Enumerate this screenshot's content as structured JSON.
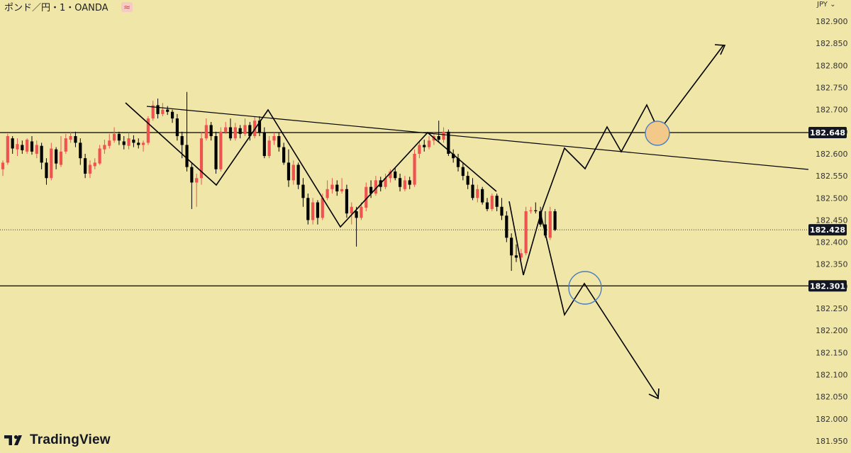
{
  "header": {
    "symbol_title": "ポンド／円・1・OANDA",
    "wave_icon": "≈",
    "currency": "JPY"
  },
  "brand": {
    "name": "TradingView"
  },
  "colors": {
    "background": "#f0e6a8",
    "up_candle": "#ef5350",
    "down_candle": "#000000",
    "drawing": "#000000",
    "circle_stroke": "#4a7fc1",
    "circle_fill": "#f3c98a"
  },
  "chart_data": {
    "type": "candlestick",
    "title": "",
    "xlabel": "",
    "ylabel": "",
    "ylim": [
      181.95,
      182.925
    ],
    "grid": false,
    "y_ticks": [
      "182.900",
      "182.850",
      "182.800",
      "182.750",
      "182.700",
      "182.650",
      "182.600",
      "182.550",
      "182.500",
      "182.450",
      "182.400",
      "182.350",
      "182.300",
      "182.250",
      "182.200",
      "182.150",
      "182.100",
      "182.050",
      "182.000",
      "181.950"
    ],
    "price_labels": [
      {
        "value": 182.648,
        "label": "182.648",
        "line": "solid"
      },
      {
        "value": 182.428,
        "label": "182.428",
        "line": "dotted"
      },
      {
        "value": 182.301,
        "label": "182.301",
        "line": "solid"
      }
    ],
    "candles": [
      [
        182.565,
        182.58,
        182.585,
        182.55
      ],
      [
        182.58,
        182.64,
        182.645,
        182.575
      ],
      [
        182.635,
        182.612,
        182.64,
        182.6
      ],
      [
        182.61,
        182.622,
        182.635,
        182.595
      ],
      [
        182.62,
        182.608,
        182.63,
        182.6
      ],
      [
        182.605,
        182.632,
        182.635,
        182.6
      ],
      [
        182.628,
        182.605,
        182.64,
        182.598
      ],
      [
        182.6,
        182.62,
        182.63,
        182.59
      ],
      [
        182.618,
        182.58,
        182.625,
        182.565
      ],
      [
        182.58,
        182.545,
        182.59,
        182.53
      ],
      [
        182.545,
        182.612,
        182.625,
        182.54
      ],
      [
        182.61,
        182.578,
        182.615,
        182.565
      ],
      [
        182.575,
        182.605,
        182.64,
        182.57
      ],
      [
        182.605,
        182.635,
        182.645,
        182.6
      ],
      [
        182.632,
        182.64,
        182.65,
        182.625
      ],
      [
        182.64,
        182.625,
        182.65,
        182.615
      ],
      [
        182.625,
        182.59,
        182.635,
        182.575
      ],
      [
        182.59,
        182.555,
        182.6,
        182.545
      ],
      [
        182.555,
        182.575,
        182.585,
        182.545
      ],
      [
        182.572,
        182.58,
        182.59,
        182.565
      ],
      [
        182.578,
        182.612,
        182.62,
        182.575
      ],
      [
        182.61,
        182.62,
        182.632,
        182.6
      ],
      [
        182.618,
        182.63,
        182.645,
        182.612
      ],
      [
        182.63,
        182.645,
        182.66,
        182.625
      ],
      [
        182.645,
        182.63,
        182.65,
        182.62
      ],
      [
        182.628,
        182.62,
        182.64,
        182.61
      ],
      [
        182.618,
        182.635,
        182.648,
        182.61
      ],
      [
        182.632,
        182.625,
        182.642,
        182.615
      ],
      [
        182.625,
        182.62,
        182.635,
        182.612
      ],
      [
        182.62,
        182.625,
        182.63,
        182.605
      ],
      [
        182.625,
        182.68,
        182.685,
        182.62
      ],
      [
        182.68,
        182.71,
        182.72,
        182.675
      ],
      [
        182.71,
        182.69,
        182.725,
        182.68
      ],
      [
        182.69,
        182.7,
        182.715,
        182.685
      ],
      [
        182.7,
        182.695,
        182.708,
        182.688
      ],
      [
        182.695,
        182.68,
        182.7,
        182.67
      ],
      [
        182.68,
        182.64,
        182.69,
        182.63
      ],
      [
        182.64,
        182.62,
        182.65,
        182.59
      ],
      [
        182.62,
        182.57,
        182.74,
        182.56
      ],
      [
        182.57,
        182.535,
        182.58,
        182.475
      ],
      [
        182.535,
        182.545,
        182.555,
        182.48
      ],
      [
        182.545,
        182.635,
        182.65,
        182.53
      ],
      [
        182.635,
        182.665,
        182.68,
        182.63
      ],
      [
        182.665,
        182.64,
        182.672,
        182.63
      ],
      [
        182.64,
        182.565,
        182.65,
        182.555
      ],
      [
        182.565,
        182.65,
        182.66,
        182.56
      ],
      [
        182.65,
        182.66,
        182.672,
        182.645
      ],
      [
        182.66,
        182.635,
        182.68,
        182.63
      ],
      [
        182.635,
        182.66,
        182.67,
        182.63
      ],
      [
        182.658,
        182.645,
        182.665,
        182.635
      ],
      [
        182.645,
        182.665,
        182.68,
        182.64
      ],
      [
        182.665,
        182.64,
        182.672,
        182.63
      ],
      [
        182.64,
        182.675,
        182.685,
        182.635
      ],
      [
        182.675,
        182.648,
        182.685,
        182.64
      ],
      [
        182.648,
        182.595,
        182.66,
        182.59
      ],
      [
        182.595,
        182.63,
        182.64,
        182.59
      ],
      [
        182.63,
        182.64,
        182.648,
        182.62
      ],
      [
        182.64,
        182.615,
        182.648,
        182.605
      ],
      [
        182.615,
        182.58,
        182.625,
        182.575
      ],
      [
        182.58,
        182.54,
        182.61,
        182.525
      ],
      [
        182.54,
        182.575,
        182.585,
        182.53
      ],
      [
        182.575,
        182.53,
        182.58,
        182.52
      ],
      [
        182.53,
        182.5,
        182.545,
        182.48
      ],
      [
        182.5,
        182.45,
        182.51,
        182.44
      ],
      [
        182.45,
        182.49,
        182.5,
        182.44
      ],
      [
        182.49,
        182.455,
        182.495,
        182.44
      ],
      [
        182.455,
        182.5,
        182.51,
        182.45
      ],
      [
        182.5,
        182.52,
        182.54,
        182.495
      ],
      [
        182.52,
        182.53,
        182.545,
        182.51
      ],
      [
        182.53,
        182.515,
        182.54,
        182.505
      ],
      [
        182.515,
        182.52,
        182.545,
        182.51
      ],
      [
        182.52,
        182.465,
        182.53,
        182.455
      ],
      [
        182.465,
        182.48,
        182.49,
        182.44
      ],
      [
        182.47,
        182.455,
        182.48,
        182.39
      ],
      [
        182.455,
        182.48,
        182.49,
        182.45
      ],
      [
        182.478,
        182.525,
        182.535,
        182.47
      ],
      [
        182.525,
        182.51,
        182.54,
        182.5
      ],
      [
        182.51,
        182.54,
        182.55,
        182.505
      ],
      [
        182.54,
        182.525,
        182.548,
        182.515
      ],
      [
        182.525,
        182.545,
        182.555,
        182.52
      ],
      [
        182.545,
        182.56,
        182.565,
        182.535
      ],
      [
        182.56,
        182.545,
        182.568,
        182.54
      ],
      [
        182.545,
        182.525,
        182.555,
        182.515
      ],
      [
        182.52,
        182.54,
        182.55,
        182.515
      ],
      [
        182.54,
        182.53,
        182.548,
        182.52
      ],
      [
        182.53,
        182.6,
        182.61,
        182.525
      ],
      [
        182.6,
        182.62,
        182.63,
        182.59
      ],
      [
        182.62,
        182.615,
        182.632,
        182.605
      ],
      [
        182.615,
        182.63,
        182.64,
        182.61
      ],
      [
        182.63,
        182.64,
        182.65,
        182.62
      ],
      [
        182.64,
        182.632,
        182.675,
        182.625
      ],
      [
        182.632,
        182.65,
        182.66,
        182.625
      ],
      [
        182.65,
        182.6,
        182.655,
        182.595
      ],
      [
        182.6,
        182.59,
        182.61,
        182.58
      ],
      [
        182.59,
        182.57,
        182.6,
        182.56
      ],
      [
        182.57,
        182.55,
        182.58,
        182.54
      ],
      [
        182.55,
        182.53,
        182.56,
        182.52
      ],
      [
        182.53,
        182.5,
        182.545,
        182.495
      ],
      [
        182.5,
        182.52,
        182.53,
        182.49
      ],
      [
        182.52,
        182.49,
        182.525,
        182.485
      ],
      [
        182.49,
        182.475,
        182.5,
        182.47
      ],
      [
        182.475,
        182.505,
        182.51,
        182.47
      ],
      [
        182.505,
        182.48,
        182.51,
        182.47
      ],
      [
        182.48,
        182.46,
        182.5,
        182.45
      ],
      [
        182.46,
        182.41,
        182.47,
        182.4
      ],
      [
        182.41,
        182.37,
        182.42,
        182.335
      ],
      [
        182.37,
        182.365,
        182.395,
        182.355
      ],
      [
        182.365,
        182.375,
        182.385,
        182.36
      ],
      [
        182.375,
        182.47,
        182.48,
        182.37
      ],
      [
        182.47,
        182.472,
        182.48,
        182.465
      ],
      [
        182.472,
        182.47,
        182.49,
        182.465
      ],
      [
        182.47,
        182.44,
        182.48,
        182.435
      ],
      [
        182.44,
        182.415,
        182.47,
        182.41
      ],
      [
        182.41,
        182.47,
        182.48,
        182.405
      ],
      [
        182.47,
        182.428,
        182.475,
        182.425
      ]
    ]
  },
  "annotations": {
    "resistance_line": "182.648",
    "support_line": "182.301",
    "note": ""
  }
}
